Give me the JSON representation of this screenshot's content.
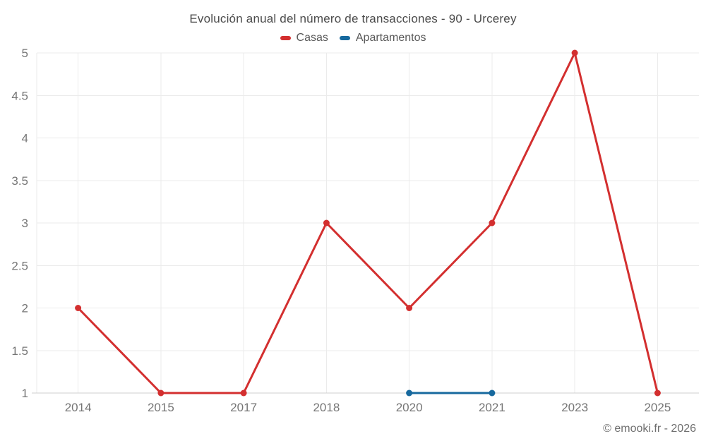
{
  "chart_data": {
    "type": "line",
    "title": "Evolución anual del número de transacciones - 90 - Urcerey",
    "categories": [
      "2014",
      "2015",
      "2017",
      "2018",
      "2020",
      "2021",
      "2023",
      "2025"
    ],
    "series": [
      {
        "name": "Casas",
        "color": "#d32f2f",
        "values": [
          2,
          1,
          1,
          3,
          2,
          3,
          5,
          1
        ]
      },
      {
        "name": "Apartamentos",
        "color": "#17699e",
        "values": [
          null,
          null,
          null,
          null,
          1,
          1,
          null,
          null
        ]
      }
    ],
    "ylim": [
      1,
      5
    ],
    "ytick_step": 0.5,
    "grid": true,
    "legend_position": "top",
    "colors": {
      "grid_color": "#ebebeb",
      "axis_color": "#cfcfcf",
      "tick_label_color": "#757575"
    }
  },
  "footer": {
    "credit": "© emooki.fr - 2026"
  }
}
